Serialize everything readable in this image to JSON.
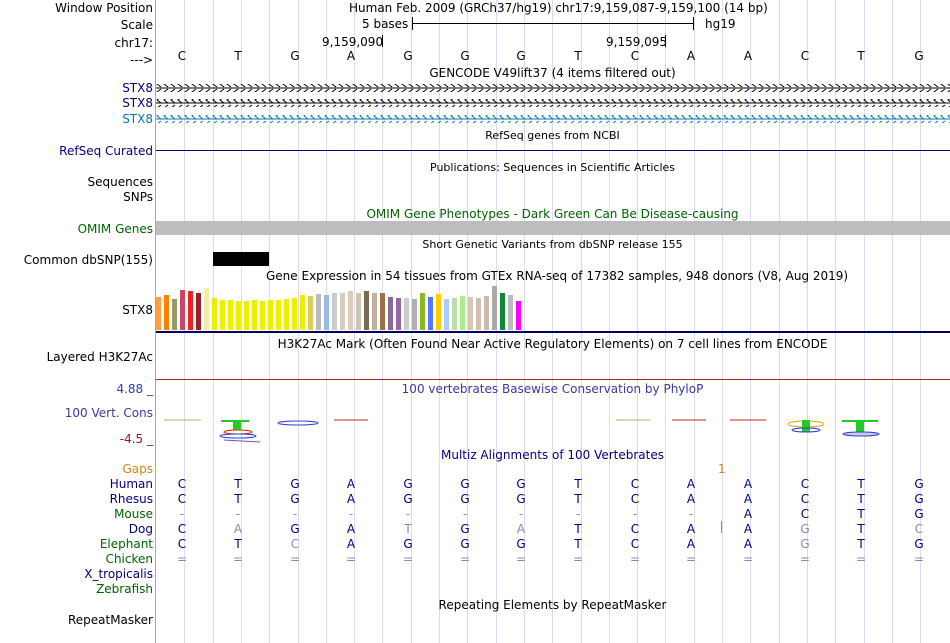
{
  "header": {
    "window_position_label": "Window Position",
    "window_position_value": "Human Feb. 2009 (GRCh37/hg19)   chr17:9,159,087-9,159,100 (14 bp)",
    "scale_label": "Scale",
    "scale_value": "5 bases",
    "assembly": "hg19",
    "chrom_label": "chr17:",
    "coord_left": "9,159,090",
    "coord_right": "9,159,095",
    "arrow_label": "--->"
  },
  "sequence": [
    "C",
    "T",
    "G",
    "A",
    "G",
    "G",
    "G",
    "T",
    "C",
    "A",
    "A",
    "C",
    "T",
    "G"
  ],
  "tracks": {
    "gencode": {
      "title": "GENCODE V49lift37 (4 items filtered out)",
      "genes": [
        "STX8",
        "STX8",
        "STX8"
      ]
    },
    "refseq": {
      "title": "RefSeq genes from NCBI",
      "label": "RefSeq Curated"
    },
    "publications": {
      "title": "Publications: Sequences in Scientific Articles",
      "labels": [
        "Sequences",
        "SNPs"
      ]
    },
    "omim": {
      "title": "OMIM Gene Phenotypes - Dark Green Can Be Disease-causing",
      "label": "OMIM Genes"
    },
    "dbsnp": {
      "title": "Short Genetic Variants from dbSNP release 155",
      "label": "Common dbSNP(155)"
    },
    "gtex": {
      "title": "Gene Expression in 54 tissues from GTEx RNA-seq of 17382 samples, 948 donors (V8, Aug 2019)",
      "label": "STX8",
      "bars": [
        {
          "h": 0.75,
          "c": "#ff9f40"
        },
        {
          "h": 0.8,
          "c": "#ff7f00"
        },
        {
          "h": 0.7,
          "c": "#999966"
        },
        {
          "h": 0.9,
          "c": "#cc4466"
        },
        {
          "h": 0.88,
          "c": "#ee2222"
        },
        {
          "h": 0.85,
          "c": "#9a2222"
        },
        {
          "h": 0.95,
          "c": "#efefaa"
        },
        {
          "h": 0.72,
          "c": "#eeee00"
        },
        {
          "h": 0.68,
          "c": "#eeee00"
        },
        {
          "h": 0.68,
          "c": "#eeee00"
        },
        {
          "h": 0.66,
          "c": "#eeee00"
        },
        {
          "h": 0.66,
          "c": "#eeee00"
        },
        {
          "h": 0.68,
          "c": "#eeee00"
        },
        {
          "h": 0.66,
          "c": "#eeee00"
        },
        {
          "h": 0.68,
          "c": "#eeee00"
        },
        {
          "h": 0.68,
          "c": "#eeee00"
        },
        {
          "h": 0.7,
          "c": "#eeee00"
        },
        {
          "h": 0.72,
          "c": "#eeee00"
        },
        {
          "h": 0.8,
          "c": "#eeee00"
        },
        {
          "h": 0.78,
          "c": "#ddcc55"
        },
        {
          "h": 0.82,
          "c": "#bbbbbb"
        },
        {
          "h": 0.8,
          "c": "#99bbdd"
        },
        {
          "h": 0.85,
          "c": "#cccccc"
        },
        {
          "h": 0.85,
          "c": "#ddccbb"
        },
        {
          "h": 0.88,
          "c": "#ddccbb"
        },
        {
          "h": 0.85,
          "c": "#cfc5b0"
        },
        {
          "h": 0.88,
          "c": "#7a6a55"
        },
        {
          "h": 0.85,
          "c": "#c0b0a0"
        },
        {
          "h": 0.85,
          "c": "#a0724a"
        },
        {
          "h": 0.75,
          "c": "#8a6a9a"
        },
        {
          "h": 0.72,
          "c": "#9966aa"
        },
        {
          "h": 0.72,
          "c": "#cccccc"
        },
        {
          "h": 0.7,
          "c": "#b0b0b0"
        },
        {
          "h": 0.85,
          "c": "#88bb22"
        },
        {
          "h": 0.75,
          "c": "#5577ff"
        },
        {
          "h": 0.82,
          "c": "#ffcc00"
        },
        {
          "h": 0.7,
          "c": "#aaccff"
        },
        {
          "h": 0.72,
          "c": "#bbddaa"
        },
        {
          "h": 0.78,
          "c": "#aaee88"
        },
        {
          "h": 0.75,
          "c": "#d8c8b8"
        },
        {
          "h": 0.72,
          "c": "#d0c0b0"
        },
        {
          "h": 0.78,
          "c": "#ccbbaa"
        },
        {
          "h": 1.0,
          "c": "#aaaaaa"
        },
        {
          "h": 0.85,
          "c": "#118833"
        },
        {
          "h": 0.8,
          "c": "#bbbbbb"
        },
        {
          "h": 0.65,
          "c": "#ff00ff"
        }
      ]
    },
    "h3k27ac": {
      "title": "H3K27Ac Mark (Often Found Near Active Regulatory Elements) on 7 cell lines from ENCODE",
      "label": "Layered H3K27Ac"
    },
    "phylop": {
      "title": "100 vertebrates Basewise Conservation by PhyloP",
      "label": "100 Vert. Cons",
      "max": "4.88 _",
      "min": "-4.5 _"
    },
    "multiz": {
      "title": "Multiz Alignments of 100 Vertebrates",
      "gaps_label": "Gaps",
      "gap_mark": "1",
      "species": [
        {
          "name": "Human",
          "cls": "navy",
          "bases": [
            "C",
            "T",
            "G",
            "A",
            "G",
            "G",
            "G",
            "T",
            "C",
            "A",
            "A",
            "C",
            "T",
            "G"
          ]
        },
        {
          "name": "Rhesus",
          "cls": "navy",
          "bases": [
            "C",
            "T",
            "G",
            "A",
            "G",
            "G",
            "G",
            "T",
            "C",
            "A",
            "A",
            "C",
            "T",
            "G"
          ]
        },
        {
          "name": "Mouse",
          "cls": "green",
          "bases": [
            "-",
            "-",
            "-",
            "-",
            "-",
            "-",
            "-",
            "-",
            "-",
            "-",
            "A",
            "C",
            "T",
            "G"
          ]
        },
        {
          "name": "Dog",
          "cls": "navy",
          "bases": [
            "C",
            "A",
            "G",
            "A",
            "T",
            "G",
            "A",
            "T",
            "C",
            "A",
            "A",
            "G",
            "T",
            "C"
          ]
        },
        {
          "name": "Elephant",
          "cls": "green",
          "bases": [
            "C",
            "T",
            "C",
            "A",
            "G",
            "G",
            "G",
            "T",
            "C",
            "A",
            "A",
            "G",
            "T",
            "G"
          ]
        },
        {
          "name": "Chicken",
          "cls": "green",
          "bases": [
            "=",
            "=",
            "=",
            "=",
            "=",
            "=",
            "=",
            "=",
            "=",
            "=",
            "=",
            "=",
            "=",
            "="
          ]
        },
        {
          "name": "X_tropicalis",
          "cls": "navy",
          "bases": []
        },
        {
          "name": "Zebrafish",
          "cls": "green",
          "bases": []
        }
      ]
    },
    "repeatmasker": {
      "title": "Repeating Elements by RepeatMasker",
      "label": "RepeatMasker"
    }
  }
}
